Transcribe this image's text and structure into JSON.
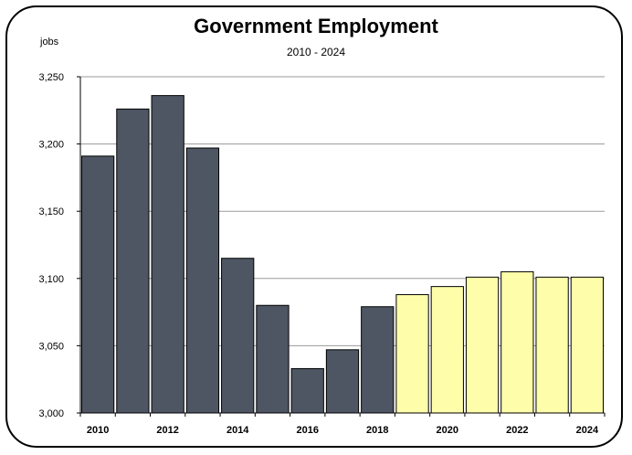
{
  "chart_data": {
    "type": "bar",
    "title": "Government Employment",
    "subtitle": "2010 - 2024",
    "ylabel": "jobs",
    "xlabel": "",
    "ylim": [
      3000,
      3250
    ],
    "yticks": [
      "3,000",
      "3,050",
      "3,100",
      "3,150",
      "3,200",
      "3,250"
    ],
    "ytick_values": [
      3000,
      3050,
      3100,
      3150,
      3200,
      3250
    ],
    "categories": [
      "2010",
      "2011",
      "2012",
      "2013",
      "2014",
      "2015",
      "2016",
      "2017",
      "2018",
      "2019",
      "2020",
      "2021",
      "2022",
      "2023",
      "2024"
    ],
    "xtick_labels": [
      "2010",
      "",
      "2012",
      "",
      "2014",
      "",
      "2016",
      "",
      "2018",
      "",
      "2020",
      "",
      "2022",
      "",
      "2024"
    ],
    "values": [
      3191,
      3226,
      3236,
      3197,
      3115,
      3080,
      3033,
      3047,
      3079,
      3088,
      3094,
      3101,
      3105,
      3101,
      3101
    ],
    "bar_colors": [
      "#4e5563",
      "#4e5563",
      "#4e5563",
      "#4e5563",
      "#4e5563",
      "#4e5563",
      "#4e5563",
      "#4e5563",
      "#4e5563",
      "#fefdaa",
      "#fefdaa",
      "#fefdaa",
      "#fefdaa",
      "#fefdaa",
      "#fefdaa"
    ],
    "grid": true,
    "legend": "none"
  }
}
